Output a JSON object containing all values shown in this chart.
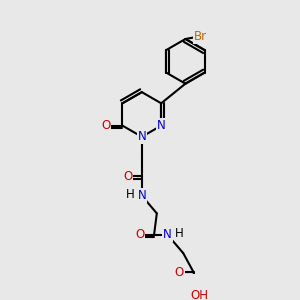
{
  "bg_color": "#e8e8e8",
  "bond_color": "#000000",
  "bond_width": 1.5,
  "atom_colors": {
    "C": "#000000",
    "N": "#0000cc",
    "O": "#cc0000",
    "Br": "#cc6600",
    "H": "#000000"
  },
  "font_size": 8.5,
  "figsize": [
    3.0,
    3.0
  ],
  "dpi": 100
}
